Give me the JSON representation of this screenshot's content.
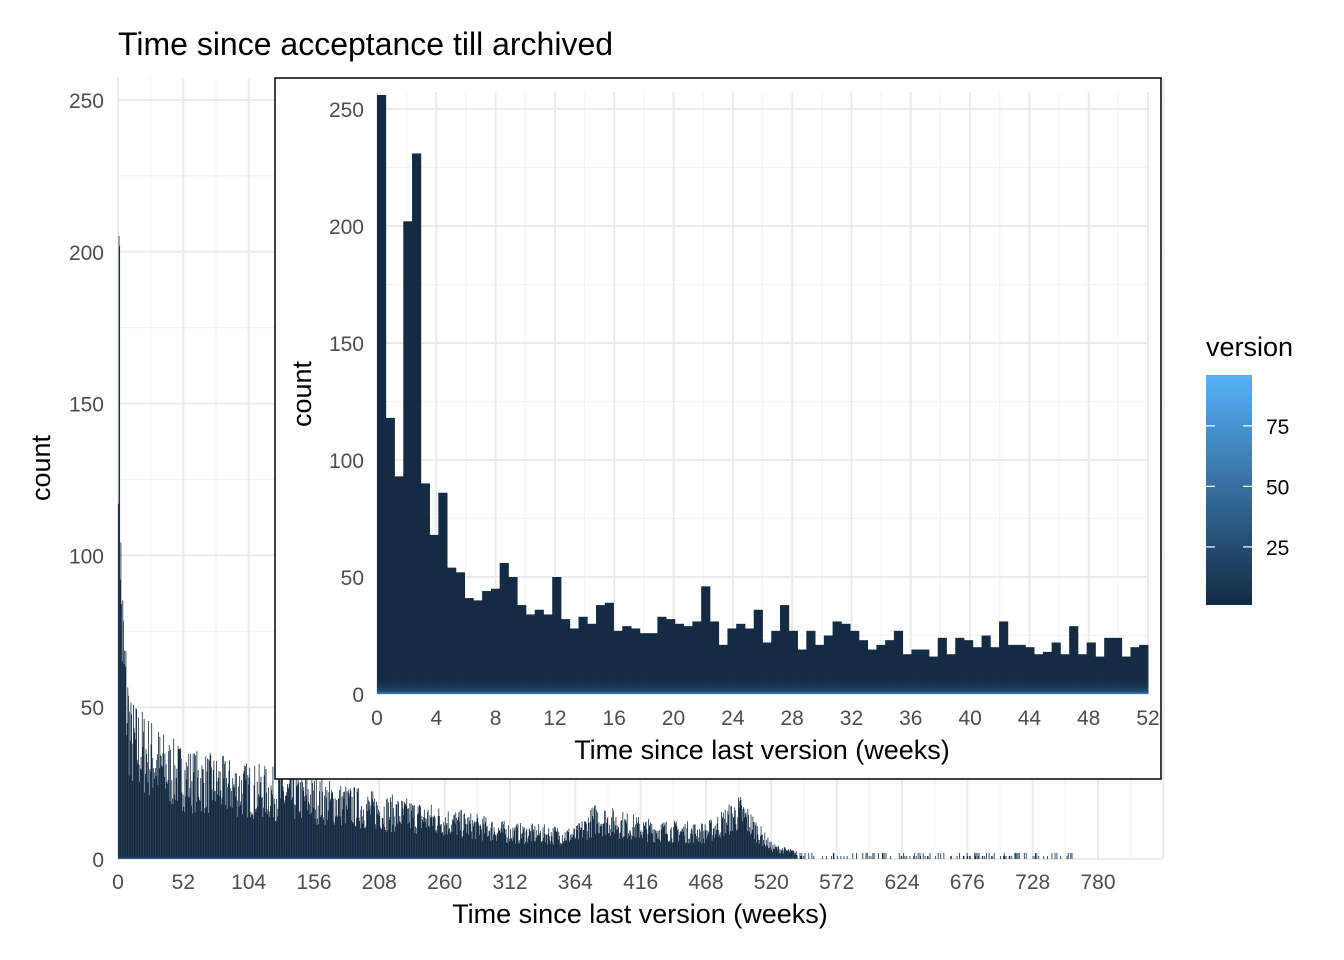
{
  "title": "Time since acceptance till archived",
  "legend": {
    "title": "version",
    "ticks": [
      25,
      50,
      75
    ],
    "range": [
      1,
      96
    ],
    "colors": {
      "low": "#132b43",
      "high": "#56b1f7"
    }
  },
  "chart_data": [
    {
      "name": "main",
      "type": "bar",
      "xlabel": "Time since last version (weeks)",
      "ylabel": "count",
      "xlim": [
        0,
        832
      ],
      "ylim": [
        0,
        256
      ],
      "xticks": [
        0,
        52,
        104,
        156,
        208,
        260,
        312,
        364,
        416,
        468,
        520,
        572,
        624,
        676,
        728,
        780
      ],
      "yticks": [
        0,
        50,
        100,
        150,
        200,
        250
      ],
      "grid": true,
      "series_summary": [
        {
          "x": 0,
          "y": 117
        },
        {
          "x": 1,
          "y": 202
        },
        {
          "x": 2,
          "y": 92
        },
        {
          "x": 4,
          "y": 68
        },
        {
          "x": 6,
          "y": 57
        },
        {
          "x": 10,
          "y": 40
        },
        {
          "x": 20,
          "y": 37
        },
        {
          "x": 40,
          "y": 30
        },
        {
          "x": 60,
          "y": 27
        },
        {
          "x": 100,
          "y": 24
        },
        {
          "x": 150,
          "y": 21
        },
        {
          "x": 200,
          "y": 17
        },
        {
          "x": 260,
          "y": 13
        },
        {
          "x": 312,
          "y": 9
        },
        {
          "x": 364,
          "y": 8
        },
        {
          "x": 380,
          "y": 14
        },
        {
          "x": 420,
          "y": 10
        },
        {
          "x": 468,
          "y": 9
        },
        {
          "x": 495,
          "y": 16
        },
        {
          "x": 520,
          "y": 4
        },
        {
          "x": 540,
          "y": 2
        },
        {
          "x": 600,
          "y": 1
        },
        {
          "x": 700,
          "y": 1
        },
        {
          "x": 754,
          "y": 1
        }
      ]
    },
    {
      "name": "inset",
      "type": "bar",
      "xlabel": "Time since last version (weeks)",
      "ylabel": "count",
      "xlim": [
        0,
        52
      ],
      "ylim": [
        0,
        256
      ],
      "xticks": [
        0,
        4,
        8,
        12,
        16,
        20,
        24,
        28,
        32,
        36,
        40,
        44,
        48,
        52
      ],
      "yticks": [
        0,
        50,
        100,
        150,
        200,
        250
      ],
      "grid": true,
      "bin_width": 0.5,
      "values": [
        256,
        118,
        93,
        202,
        231,
        90,
        68,
        86,
        54,
        52,
        41,
        40,
        44,
        45,
        56,
        50,
        38,
        34,
        36,
        34,
        50,
        32,
        28,
        33,
        30,
        38,
        39,
        27,
        29,
        28,
        26,
        26,
        33,
        32,
        30,
        29,
        31,
        46,
        31,
        21,
        28,
        30,
        28,
        36,
        22,
        27,
        38,
        27,
        19,
        27,
        21,
        25,
        31,
        30,
        27,
        23,
        19,
        21,
        23,
        27,
        17,
        19,
        19,
        16,
        24,
        17,
        24,
        23,
        20,
        25,
        20,
        31,
        21,
        21,
        20,
        17,
        18,
        22,
        17,
        29,
        17,
        22,
        16,
        24,
        24,
        16,
        20,
        21
      ]
    }
  ]
}
